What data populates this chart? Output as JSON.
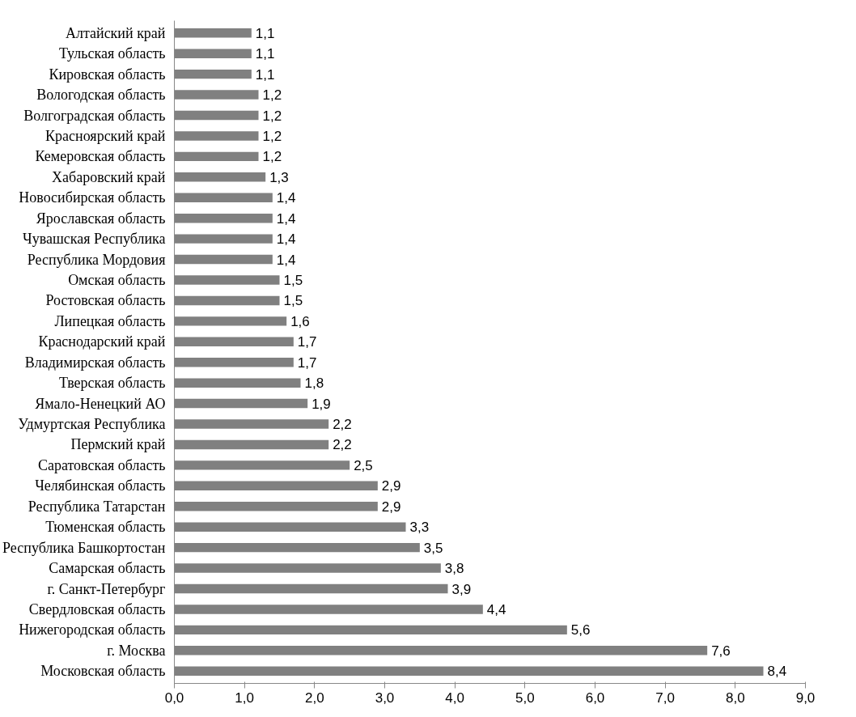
{
  "chart_data": {
    "type": "bar",
    "orientation": "horizontal",
    "categories": [
      "Алтайский край",
      "Тульская область",
      "Кировская область",
      "Вологодская область",
      "Волгоградская область",
      "Красноярский край",
      "Кемеровская область",
      "Хабаровский край",
      "Новосибирская область",
      "Ярославская область",
      "Чувашская Республика",
      "Республика Мордовия",
      "Омская область",
      "Ростовская область",
      "Липецкая область",
      "Краснодарский край",
      "Владимирская область",
      "Тверская область",
      "Ямало-Ненецкий АО",
      "Удмуртская Республика",
      "Пермский край",
      "Саратовская область",
      "Челябинская область",
      "Республика Татарстан",
      "Тюменская область",
      "Республика Башкортостан",
      "Самарская область",
      "г. Санкт-Петербург",
      "Свердловская область",
      "Нижегородская область",
      "г. Москва",
      "Московская область"
    ],
    "values": [
      1.1,
      1.1,
      1.1,
      1.2,
      1.2,
      1.2,
      1.2,
      1.3,
      1.4,
      1.4,
      1.4,
      1.4,
      1.5,
      1.5,
      1.6,
      1.7,
      1.7,
      1.8,
      1.9,
      2.2,
      2.2,
      2.5,
      2.9,
      2.9,
      3.3,
      3.5,
      3.8,
      3.9,
      4.4,
      5.6,
      7.6,
      8.4
    ],
    "value_labels": [
      "1,1",
      "1,1",
      "1,1",
      "1,2",
      "1,2",
      "1,2",
      "1,2",
      "1,3",
      "1,4",
      "1,4",
      "1,4",
      "1,4",
      "1,5",
      "1,5",
      "1,6",
      "1,7",
      "1,7",
      "1,8",
      "1,9",
      "2,2",
      "2,2",
      "2,5",
      "2,9",
      "2,9",
      "3,3",
      "3,5",
      "3,8",
      "3,9",
      "4,4",
      "5,6",
      "7,6",
      "8,4"
    ],
    "color": "#808080",
    "xlim": [
      0,
      9
    ],
    "xticks": [
      {
        "value": 0,
        "label": "0,0"
      },
      {
        "value": 1,
        "label": "1,0"
      },
      {
        "value": 2,
        "label": "2,0"
      },
      {
        "value": 3,
        "label": "3,0"
      },
      {
        "value": 4,
        "label": "4,0"
      },
      {
        "value": 5,
        "label": "5,0"
      },
      {
        "value": 6,
        "label": "6,0"
      },
      {
        "value": 7,
        "label": "7,0"
      },
      {
        "value": 8,
        "label": "8,0"
      },
      {
        "value": 9,
        "label": "9,0"
      }
    ],
    "grid": false
  }
}
